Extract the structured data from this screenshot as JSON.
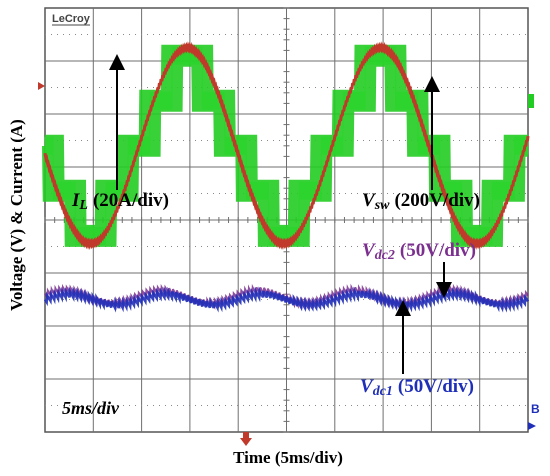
{
  "chart_data": {
    "type": "line",
    "instrument_label": "LeCroy",
    "xlabel": "Time (5ms/div)",
    "ylabel": "Voltage (V) & Current (A)",
    "timebase_label": "5ms/div",
    "divisions": {
      "x": 10,
      "y": 8
    },
    "grid": true,
    "x_range_ms": [
      0,
      50
    ],
    "series": [
      {
        "name": "I",
        "subscript": "L",
        "scale": "(20A/div)",
        "color": "#c0392b",
        "kind": "sine",
        "amplitude_div": 1.85,
        "offset_div": 1.4,
        "frequency_hz": 50,
        "phase_deg": 185
      },
      {
        "name": "V",
        "subscript": "sw",
        "scale": "(200V/div)",
        "color": "#22cc22",
        "kind": "staircase",
        "levels_div": [
          0.85,
          1.7
        ],
        "offset_div": 1.4,
        "frequency_hz": 50,
        "phase_deg": 185
      },
      {
        "name": "V",
        "subscript": "dc2",
        "scale": "(50V/div)",
        "color": "#7b2f8e",
        "kind": "ripple",
        "offset_div": -1.45,
        "ripple_div": 0.12,
        "ripple_hz": 100
      },
      {
        "name": "V",
        "subscript": "dc1",
        "scale": "(50V/div)",
        "color": "#1f2fb8",
        "kind": "ripple",
        "offset_div": -1.5,
        "ripple_div": 0.1,
        "ripple_hz": 100
      }
    ],
    "channel_markers": {
      "left": "",
      "right": "B"
    }
  }
}
